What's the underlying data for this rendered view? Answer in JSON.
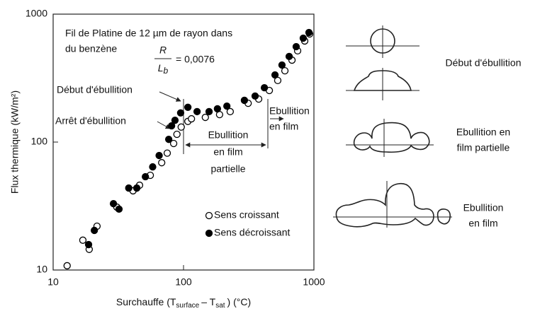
{
  "chart_data": {
    "type": "scatter",
    "title_lines": [
      "Fil de Platine de 12 µm de rayon dans",
      "du benzène"
    ],
    "formula": {
      "numerator": "R",
      "denominator": "L",
      "subscript": "b",
      "rest": "= 0,0076"
    },
    "xlabel_parts": [
      "Surchauffe (T",
      "surface",
      "– T",
      "sat",
      ") (°C)"
    ],
    "ylabel": "Flux thermique (kW/m²)",
    "log_x": true,
    "log_y": true,
    "xlim": [
      10,
      1000
    ],
    "xticks": [
      10,
      100,
      1000
    ],
    "ylim": [
      10,
      1000
    ],
    "yticks": [
      10,
      100,
      1000
    ],
    "annotations": {
      "debut": "Début d'ébullition",
      "arret": "Arrêt d'ébullition",
      "partielle": [
        "Ebullition",
        "en film",
        "partielle"
      ],
      "film": [
        "Ebullition",
        "en film"
      ]
    },
    "diagram_labels": [
      [
        "Début d'ébullition"
      ],
      [
        "Ebullition en",
        "film partielle"
      ],
      [
        "Ebullition",
        "en film"
      ]
    ],
    "series": [
      {
        "name": "Sens croissant",
        "color": "#000000",
        "filled": false,
        "x": [
          12.8,
          16.9,
          18.9,
          21.7,
          30.8,
          41,
          46,
          55.6,
          68,
          75,
          84,
          89,
          96,
          108,
          115,
          147,
          189,
          228,
          313,
          377,
          455,
          528,
          599,
          679,
          750,
          850,
          927
        ],
        "values": [
          10.8,
          17.1,
          14.5,
          22,
          31,
          41.6,
          46,
          55,
          69,
          82,
          97.5,
          115,
          131,
          145,
          152,
          156,
          164,
          173,
          201,
          217,
          253,
          303,
          361,
          437,
          517,
          617,
          700
        ]
      },
      {
        "name": "Sens décroissant",
        "color": "#000000",
        "filled": true,
        "x": [
          18.7,
          20.7,
          29,
          32,
          38,
          43.8,
          51,
          58,
          65,
          77,
          81,
          86,
          95,
          108,
          127,
          157,
          182,
          215,
          293,
          354,
          417,
          503,
          569,
          646,
          731,
          828,
          916
        ],
        "values": [
          15.8,
          20.4,
          33,
          29.9,
          43.7,
          43.7,
          53.6,
          64,
          78.5,
          105,
          134,
          148,
          169,
          187,
          173,
          173,
          182,
          191,
          212,
          229,
          266,
          335,
          400,
          467,
          557,
          649,
          718
        ]
      }
    ]
  }
}
